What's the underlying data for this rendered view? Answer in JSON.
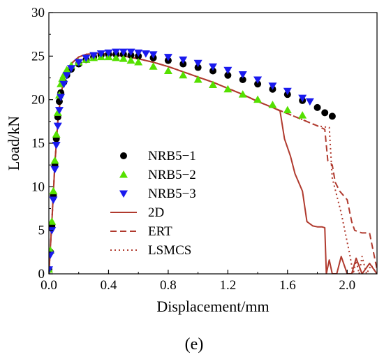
{
  "chart_data": {
    "type": "line",
    "title": "",
    "xlabel": "Displacement/mm",
    "ylabel": "Load/kN",
    "xlim": [
      0,
      2.2
    ],
    "ylim": [
      0,
      30
    ],
    "xticks": [
      0.0,
      0.4,
      0.8,
      1.2,
      1.6,
      2.0
    ],
    "xtick_labels": [
      "0.0",
      "0.4",
      "0.8",
      "1.2",
      "1.6",
      "2.0"
    ],
    "yticks": [
      0,
      5,
      10,
      15,
      20,
      25,
      30
    ],
    "ytick_labels": [
      "0",
      "5",
      "10",
      "15",
      "20",
      "25",
      "30"
    ],
    "grid": false,
    "legend_position": "center-left",
    "caption": "(e)",
    "series": [
      {
        "name": "NRB5−1",
        "style": "scatter",
        "marker": "circle",
        "color": "#000000",
        "x": [
          0.0,
          0.01,
          0.02,
          0.03,
          0.04,
          0.05,
          0.06,
          0.07,
          0.08,
          0.1,
          0.12,
          0.15,
          0.2,
          0.25,
          0.3,
          0.35,
          0.4,
          0.45,
          0.5,
          0.55,
          0.6,
          0.7,
          0.8,
          0.9,
          1.0,
          1.1,
          1.2,
          1.3,
          1.4,
          1.5,
          1.6,
          1.7,
          1.8,
          1.85,
          1.9
        ],
        "y": [
          0.5,
          2.5,
          5.5,
          9.0,
          12.5,
          15.5,
          18.0,
          19.8,
          20.8,
          22.0,
          22.8,
          23.5,
          24.1,
          24.6,
          24.9,
          25.1,
          25.2,
          25.2,
          25.2,
          25.1,
          25.0,
          24.8,
          24.5,
          24.1,
          23.7,
          23.3,
          22.8,
          22.3,
          21.8,
          21.2,
          20.6,
          19.9,
          19.1,
          18.5,
          18.1
        ]
      },
      {
        "name": "NRB5−2",
        "style": "scatter",
        "marker": "triangle-up",
        "color": "#55e000",
        "x": [
          0.0,
          0.01,
          0.02,
          0.03,
          0.04,
          0.05,
          0.06,
          0.07,
          0.08,
          0.09,
          0.1,
          0.12,
          0.15,
          0.2,
          0.25,
          0.3,
          0.35,
          0.4,
          0.45,
          0.5,
          0.55,
          0.6,
          0.7,
          0.8,
          0.9,
          1.0,
          1.1,
          1.2,
          1.3,
          1.4,
          1.5,
          1.6,
          1.7
        ],
        "y": [
          0.5,
          2.7,
          6.0,
          9.5,
          13.0,
          16.0,
          18.5,
          20.5,
          21.8,
          22.4,
          22.8,
          23.4,
          23.9,
          24.3,
          24.6,
          24.8,
          24.9,
          24.9,
          24.8,
          24.7,
          24.5,
          24.3,
          23.8,
          23.3,
          22.8,
          22.3,
          21.7,
          21.2,
          20.6,
          20.0,
          19.4,
          18.8,
          18.2
        ]
      },
      {
        "name": "NRB5−3",
        "style": "scatter",
        "marker": "triangle-down",
        "color": "#1a1aee",
        "x": [
          0.0,
          0.01,
          0.02,
          0.03,
          0.04,
          0.05,
          0.06,
          0.07,
          0.08,
          0.1,
          0.12,
          0.15,
          0.2,
          0.25,
          0.3,
          0.35,
          0.4,
          0.45,
          0.5,
          0.55,
          0.6,
          0.65,
          0.7,
          0.8,
          0.9,
          1.0,
          1.1,
          1.2,
          1.3,
          1.4,
          1.5,
          1.6,
          1.7,
          1.75
        ],
        "y": [
          0.5,
          2.2,
          5.0,
          8.5,
          12.0,
          14.8,
          17.0,
          18.8,
          20.3,
          21.8,
          22.8,
          23.6,
          24.3,
          24.8,
          25.1,
          25.3,
          25.4,
          25.5,
          25.5,
          25.5,
          25.4,
          25.3,
          25.2,
          24.9,
          24.6,
          24.2,
          23.8,
          23.4,
          22.9,
          22.3,
          21.6,
          21.0,
          20.2,
          19.8
        ]
      },
      {
        "name": "2D",
        "style": "solid",
        "color": "#b03a2e",
        "x": [
          0.0,
          0.02,
          0.04,
          0.06,
          0.08,
          0.1,
          0.13,
          0.16,
          0.2,
          0.25,
          0.3,
          0.35,
          0.4,
          0.5,
          0.6,
          0.7,
          0.8,
          0.9,
          1.0,
          1.1,
          1.2,
          1.3,
          1.4,
          1.5,
          1.55,
          1.58,
          1.62,
          1.65,
          1.7,
          1.73,
          1.77,
          1.8,
          1.83,
          1.85,
          1.86,
          1.88,
          1.9,
          1.93,
          1.96,
          2.0,
          2.03,
          2.06,
          2.1,
          2.15,
          2.2
        ],
        "y": [
          0.0,
          6.0,
          12.5,
          17.5,
          20.5,
          22.3,
          23.5,
          24.3,
          24.9,
          25.2,
          25.3,
          25.3,
          25.2,
          25.0,
          24.7,
          24.3,
          23.8,
          23.2,
          22.6,
          22.0,
          21.3,
          20.6,
          19.8,
          19.1,
          18.7,
          15.5,
          13.5,
          11.5,
          9.5,
          6.0,
          5.5,
          5.4,
          5.4,
          5.3,
          0.0,
          1.6,
          0.0,
          0.0,
          2.0,
          0.0,
          0.0,
          1.8,
          0.0,
          1.2,
          0.0
        ]
      },
      {
        "name": "ERT",
        "style": "dashed",
        "color": "#b03a2e",
        "x": [
          0.0,
          0.02,
          0.04,
          0.06,
          0.08,
          0.1,
          0.13,
          0.16,
          0.2,
          0.25,
          0.3,
          0.35,
          0.4,
          0.5,
          0.6,
          0.7,
          0.8,
          0.9,
          1.0,
          1.1,
          1.2,
          1.3,
          1.4,
          1.5,
          1.6,
          1.7,
          1.8,
          1.85,
          1.87,
          1.9,
          1.92,
          1.95,
          2.0,
          2.03,
          2.05,
          2.08,
          2.1,
          2.15,
          2.2
        ],
        "y": [
          0.0,
          6.0,
          12.5,
          17.5,
          20.5,
          22.3,
          23.5,
          24.3,
          24.9,
          25.2,
          25.3,
          25.3,
          25.2,
          25.0,
          24.7,
          24.3,
          23.8,
          23.2,
          22.6,
          22.0,
          21.3,
          20.6,
          19.8,
          19.1,
          18.4,
          17.7,
          17.0,
          16.6,
          13.0,
          12.5,
          10.5,
          9.5,
          8.5,
          6.0,
          5.0,
          4.8,
          4.7,
          4.7,
          0.5
        ]
      },
      {
        "name": "LSMCS",
        "style": "dotted",
        "color": "#b03a2e",
        "x": [
          0.0,
          0.02,
          0.04,
          0.06,
          0.08,
          0.1,
          0.13,
          0.16,
          0.2,
          0.25,
          0.3,
          0.35,
          0.4,
          0.5,
          0.6,
          0.7,
          0.8,
          0.9,
          1.0,
          1.1,
          1.2,
          1.3,
          1.4,
          1.5,
          1.6,
          1.7,
          1.8,
          1.88,
          1.9,
          1.93,
          1.96,
          1.99,
          2.02,
          2.04,
          2.06,
          2.08,
          2.1,
          2.13,
          2.16,
          2.2
        ],
        "y": [
          0.0,
          6.0,
          12.5,
          17.5,
          20.5,
          22.3,
          23.5,
          24.3,
          24.9,
          25.2,
          25.3,
          25.3,
          25.2,
          25.0,
          24.7,
          24.3,
          23.8,
          23.2,
          22.6,
          22.0,
          21.3,
          20.6,
          19.8,
          19.1,
          18.4,
          17.7,
          17.0,
          16.8,
          11.0,
          9.0,
          7.0,
          4.5,
          2.0,
          0.0,
          1.5,
          0.0,
          2.0,
          0.0,
          1.0,
          0.0
        ]
      }
    ]
  }
}
